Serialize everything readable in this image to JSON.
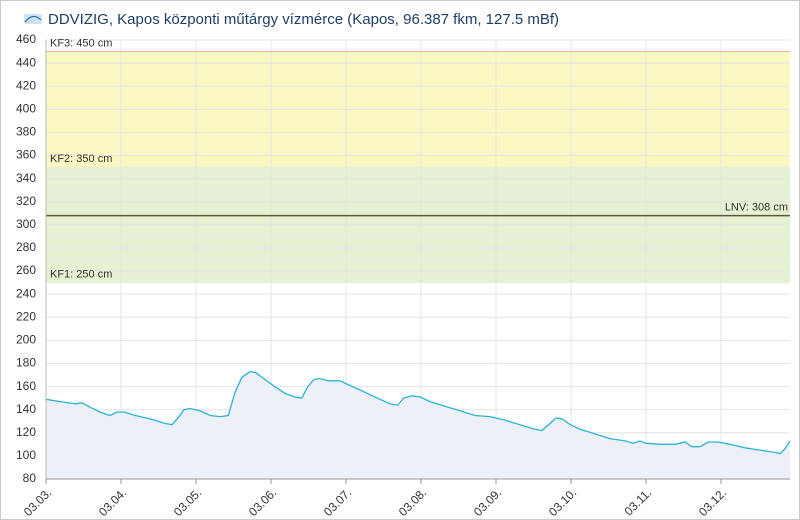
{
  "chart_data": {
    "type": "area",
    "title": "DDVIZIG, Kapos központi műtárgy vízmérce (Kapos, 96.387 fkm, 127.5 mBf)",
    "series": [
      {
        "color": "#2bb3d6",
        "x": [
          0,
          0.19,
          0.39,
          0.48,
          0.59,
          0.72,
          0.85,
          0.95,
          1.04,
          1.19,
          1.39,
          1.59,
          1.68,
          1.76,
          1.84,
          1.92,
          2.05,
          2.19,
          2.32,
          2.43,
          2.52,
          2.61,
          2.72,
          2.8,
          2.92,
          3.05,
          3.19,
          3.32,
          3.41,
          3.49,
          3.57,
          3.65,
          3.76,
          3.92,
          4.05,
          4.19,
          4.32,
          4.45,
          4.59,
          4.69,
          4.77,
          4.88,
          4.99,
          5.12,
          5.32,
          5.52,
          5.72,
          5.92,
          6.12,
          6.32,
          6.52,
          6.61,
          6.72,
          6.8,
          6.88,
          6.99,
          7.12,
          7.32,
          7.52,
          7.72,
          7.83,
          7.92,
          7.99,
          8.19,
          8.39,
          8.52,
          8.61,
          8.72,
          8.83,
          8.96,
          9.12,
          9.32,
          9.52,
          9.72,
          9.79,
          9.85,
          9.92
        ],
        "values": [
          149,
          147,
          145,
          146,
          142,
          138,
          135,
          138,
          138,
          135,
          132,
          128,
          127,
          133,
          140,
          141,
          139,
          135,
          134,
          135,
          155,
          168,
          173,
          172,
          166,
          160,
          154,
          151,
          150,
          160,
          166,
          167,
          165,
          165,
          161,
          157,
          153,
          149,
          145,
          144,
          150,
          152,
          151,
          147,
          143,
          139,
          135,
          134,
          131,
          127,
          123,
          122,
          128,
          133,
          132,
          127,
          123,
          119,
          115,
          113,
          111,
          113,
          111,
          110,
          110,
          112,
          108,
          108,
          112,
          112,
          110,
          107,
          105,
          103,
          102,
          106,
          113
        ]
      }
    ],
    "xlim": [
      0,
      9.92
    ],
    "xticks": [
      {
        "value": 0,
        "label": "03.03."
      },
      {
        "value": 1,
        "label": "03.04."
      },
      {
        "value": 2,
        "label": "03.05."
      },
      {
        "value": 3,
        "label": "03.06."
      },
      {
        "value": 4,
        "label": "03.07."
      },
      {
        "value": 5,
        "label": "03.08."
      },
      {
        "value": 6,
        "label": "03.09."
      },
      {
        "value": 7,
        "label": "03.10."
      },
      {
        "value": 8,
        "label": "03.11."
      },
      {
        "value": 9,
        "label": "03.12."
      }
    ],
    "ylim": [
      80,
      460
    ],
    "yticks": [
      80,
      100,
      120,
      140,
      160,
      180,
      200,
      220,
      240,
      260,
      280,
      300,
      320,
      340,
      360,
      380,
      400,
      420,
      440,
      460
    ],
    "grid": true,
    "bands": [
      {
        "from": 250,
        "to": 350,
        "color": "#e6f0d2"
      },
      {
        "from": 350,
        "to": 450,
        "color": "#fbf8c4"
      }
    ],
    "levels": [
      {
        "value": 450,
        "label": "KF3: 450 cm",
        "color": "#e8b0a0",
        "side": "left"
      },
      {
        "value": 350,
        "label": "KF2: 350 cm",
        "color": "#e6f0d2",
        "side": "left"
      },
      {
        "value": 250,
        "label": "KF1: 250 cm",
        "color": "#e6f0d2",
        "side": "left"
      },
      {
        "value": 308,
        "label": "LNV: 308 cm",
        "color": "#5a5a3a",
        "side": "right"
      }
    ]
  }
}
